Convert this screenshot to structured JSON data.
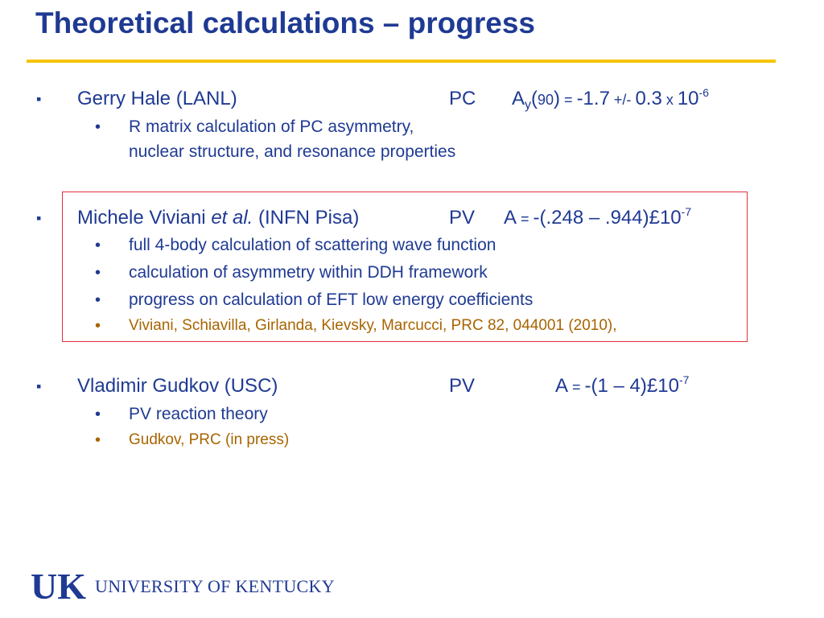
{
  "title": "Theoretical calculations – progress",
  "items": [
    {
      "name": "Gerry Hale (LANL)",
      "type": "PC",
      "formula": {
        "A": "A",
        "sub": "y",
        "open": "(",
        "arg": "90",
        "close": ")",
        "eq": " = ",
        "val": "-1.7",
        "pm": " +/- ",
        "err": "0.3",
        "times": " x ",
        "base": "10",
        "exp": "-6"
      },
      "bullets": [
        "R matrix calculation of PC asymmetry,",
        "nuclear structure, and resonance properties"
      ]
    },
    {
      "name_prefix": "Michele Viviani ",
      "name_italic": "et al.",
      "name_suffix": " (INFN Pisa)",
      "type": "PV",
      "formula": {
        "A": "A",
        "eq": " = ",
        "body": "-(.248 – .944)£10",
        "exp": "-7"
      },
      "bullets": [
        "full 4-body calculation of scattering wave function",
        "calculation of asymmetry within DDH framework",
        "progress on calculation of EFT low energy coefficients"
      ],
      "reference": "Viviani, Schiavilla, Girlanda, Kievsky, Marcucci,  PRC 82, 044001 (2010),"
    },
    {
      "name": "Vladimir Gudkov (USC)",
      "type": "PV",
      "formula": {
        "A": "A",
        "eq": " = ",
        "body": "-(1 – 4)£10",
        "exp": "-7"
      },
      "bullets": [
        "PV reaction theory"
      ],
      "reference": "Gudkov, PRC (in press)"
    }
  ],
  "logo": {
    "mark": "UK",
    "text": "UNIVERSITY OF KENTUCKY"
  },
  "colors": {
    "text": "#1f3a93",
    "reference": "#a86400",
    "rule": "#f5c400",
    "box": "#e0303a"
  },
  "icons": {
    "main_bullet": "square-bullet-icon",
    "sub_bullet": "dot-bullet-icon"
  }
}
